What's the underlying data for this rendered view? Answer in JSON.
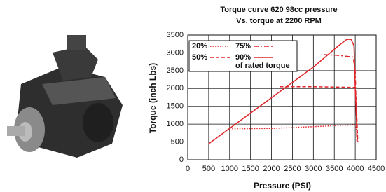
{
  "chart_data": {
    "type": "line",
    "title": "Torque curve 620 98cc pressure",
    "subtitle": "Vs. torque at 2200 RPM",
    "x_label": "Pressure (PSI)",
    "y_label": "Torque (inch Lbs)",
    "xlim": [
      0,
      4500
    ],
    "xticks": [
      0,
      500,
      1000,
      1500,
      2000,
      2500,
      3000,
      3500,
      4000,
      4500
    ],
    "ylim": [
      0,
      3500
    ],
    "yticks": [
      0,
      500,
      1000,
      1500,
      2000,
      2500,
      3000,
      3500
    ],
    "grid": true,
    "legend_note": "of rated torque",
    "series": [
      {
        "name": "20%",
        "color": "#e0262b",
        "linestyle": "dotted",
        "x": [
          1000,
          2000,
          3000,
          4000,
          4020,
          4060
        ],
        "values": [
          870,
          880,
          930,
          980,
          900,
          500
        ]
      },
      {
        "name": "75%",
        "color": "#e0262b",
        "linestyle": "dashdot",
        "x": [
          3250,
          3600,
          3950,
          4000,
          4040
        ],
        "values": [
          2950,
          2930,
          2880,
          2500,
          500
        ]
      },
      {
        "name": "50%",
        "color": "#e0262b",
        "linestyle": "dashed",
        "x": [
          2200,
          3000,
          4000,
          4030,
          4060
        ],
        "values": [
          2050,
          2050,
          2030,
          1500,
          500
        ]
      },
      {
        "name": "90%",
        "color": "#e0262b",
        "linestyle": "solid",
        "x": [
          500,
          3000,
          3600,
          3800,
          3900,
          3970,
          4000,
          4050
        ],
        "values": [
          450,
          2600,
          3200,
          3380,
          3380,
          3200,
          2000,
          500
        ]
      }
    ]
  }
}
